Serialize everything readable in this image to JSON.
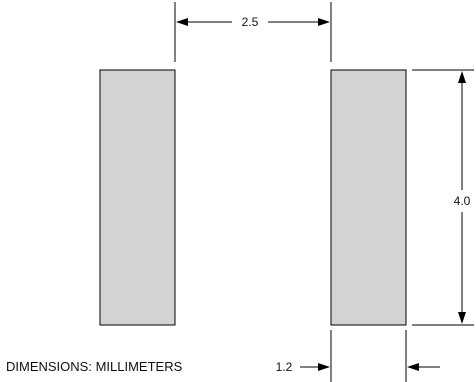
{
  "diagram": {
    "pad_fill": "#d3d3d3",
    "stroke_color": "#000000",
    "dimensions": {
      "spacing": "2.5",
      "height": "4.0",
      "pad_width": "1.2"
    },
    "note": "DIMENSIONS: MILLIMETERS"
  }
}
